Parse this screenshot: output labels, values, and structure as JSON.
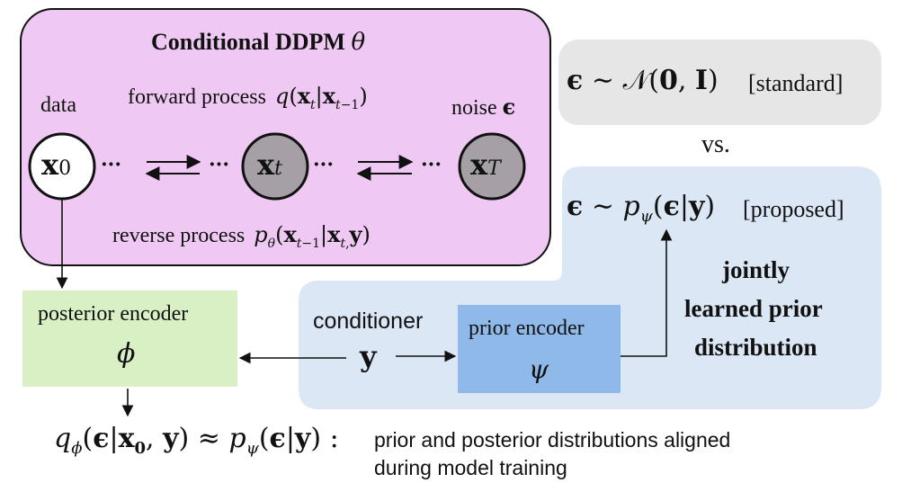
{
  "ddpm_box": {
    "title": "Conditional DDPM",
    "title_symbol": "θ",
    "data_label": "data",
    "noise_label": "noise",
    "noise_symbol": "ϵ",
    "forward_label": "forward process",
    "forward_formula": "q(xt|xt−1)",
    "reverse_label": "reverse process",
    "reverse_formula": "pθ(xt−1|xt,y)",
    "node_x0": "x0",
    "node_xt": "xt",
    "node_xT": "xT",
    "dots": "···"
  },
  "standard_box": {
    "formula": "ϵ ∼ N(0, I)",
    "tag": "[standard]"
  },
  "vs_label": "vs.",
  "proposed_box": {
    "formula": "ϵ ∼ pψ(ϵ|y)",
    "tag": "[proposed]",
    "caption_line1": "jointly",
    "caption_line2": "learned prior",
    "caption_line3": "distribution"
  },
  "posterior_encoder": {
    "label": "posterior encoder",
    "symbol": "ϕ"
  },
  "prior_encoder": {
    "label": "prior encoder",
    "symbol": "ψ"
  },
  "conditioner": {
    "label": "conditioner",
    "symbol": "y"
  },
  "bottom": {
    "formula": "qϕ(ϵ|x0, y) ≈ pψ(ϵ|y) :",
    "caption_line1": "prior and posterior distributions aligned",
    "caption_line2": "during model training"
  },
  "colors": {
    "ddpm_fill": "#efc9f3",
    "standard_fill": "#e6e6e6",
    "proposed_fill": "#dce7f6",
    "posterior_fill": "#d9f0c4",
    "prior_fill": "#8fb9e8",
    "node_gray": "#a6a0a6"
  }
}
